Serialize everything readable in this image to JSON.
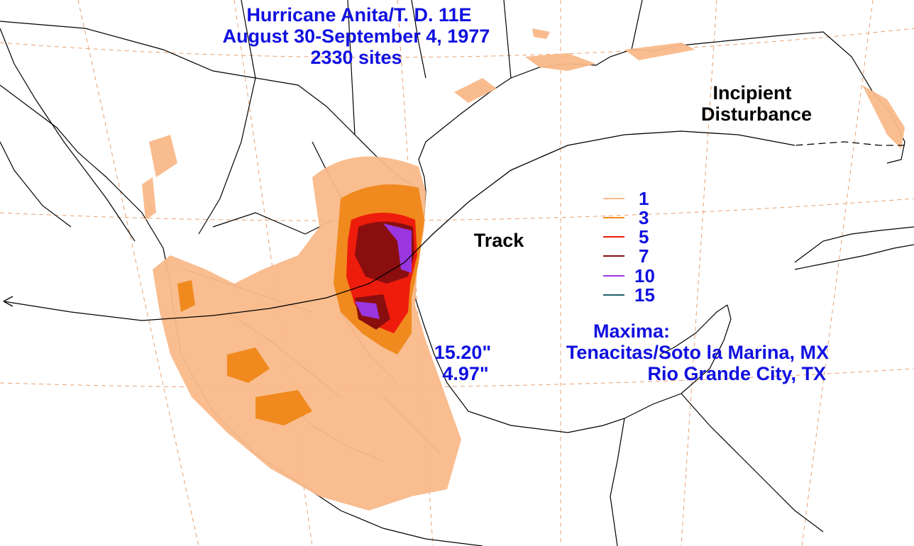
{
  "title": {
    "line1": "Hurricane Anita/T. D. 11E",
    "line2": "August 30-September 4, 1977",
    "line3": "2330 sites"
  },
  "labels": {
    "incipient_line1": "Incipient",
    "incipient_line2": "Disturbance",
    "track": "Track"
  },
  "legend": [
    {
      "label": "1",
      "color": "#f9b98a"
    },
    {
      "label": "3",
      "color": "#f08a1e"
    },
    {
      "label": "5",
      "color": "#ee1c0c"
    },
    {
      "label": "7",
      "color": "#8a0e0e"
    },
    {
      "label": "10",
      "color": "#9a36e0"
    },
    {
      "label": "15",
      "color": "#1f5f6a"
    }
  ],
  "maxima": {
    "heading": "Maxima:",
    "entries": [
      {
        "value": "15.20\"",
        "location": "Tenacitas/Soto la Marina, MX"
      },
      {
        "value": "4.97\"",
        "location": "Rio Grande City, TX"
      }
    ]
  },
  "colors": {
    "text": "#1010e0",
    "graticule": "#e8a070",
    "land_outline": "#000000"
  }
}
